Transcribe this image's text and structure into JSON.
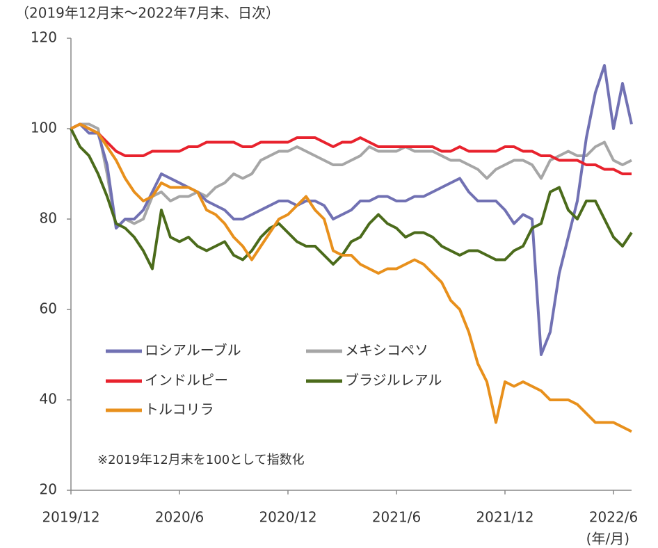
{
  "chart_data": {
    "type": "line",
    "title": "（2019年12月末～2022年7月末、日次）",
    "annotation": "※2019年12月末を100として指数化",
    "x_unit": "(年/月)",
    "categories": [
      "2019/12",
      null,
      null,
      null,
      null,
      null,
      null,
      null,
      null,
      null,
      null,
      null,
      "2020/6",
      null,
      null,
      null,
      null,
      null,
      null,
      null,
      null,
      null,
      null,
      null,
      "2020/12",
      null,
      null,
      null,
      null,
      null,
      null,
      null,
      null,
      null,
      null,
      null,
      "2021/6",
      null,
      null,
      null,
      null,
      null,
      null,
      null,
      null,
      null,
      null,
      null,
      "2021/12",
      null,
      null,
      null,
      null,
      null,
      null,
      null,
      null,
      null,
      null,
      null,
      "2022/6",
      null,
      null
    ],
    "ylim": [
      20,
      120
    ],
    "yticks": [
      20,
      40,
      60,
      80,
      100,
      120
    ],
    "series": [
      {
        "name": "ロシアルーブル",
        "color": "#7171b3",
        "values": [
          100,
          101,
          99,
          99,
          92,
          78,
          80,
          80,
          82,
          86,
          90,
          89,
          88,
          87,
          86,
          84,
          83,
          82,
          80,
          80,
          81,
          82,
          83,
          84,
          84,
          83,
          84,
          84,
          83,
          80,
          81,
          82,
          84,
          84,
          85,
          85,
          84,
          84,
          85,
          85,
          86,
          87,
          88,
          89,
          86,
          84,
          84,
          84,
          82,
          79,
          81,
          80,
          50,
          55,
          68,
          76,
          84,
          98,
          108,
          114,
          100,
          110,
          101
        ]
      },
      {
        "name": "メキシコペソ",
        "color": "#a6a6a6",
        "values": [
          100,
          101,
          101,
          100,
          90,
          78,
          80,
          79,
          80,
          85,
          86,
          84,
          85,
          85,
          86,
          85,
          87,
          88,
          90,
          89,
          90,
          93,
          94,
          95,
          95,
          96,
          95,
          94,
          93,
          92,
          92,
          93,
          94,
          96,
          95,
          95,
          95,
          96,
          95,
          95,
          95,
          94,
          93,
          93,
          92,
          91,
          89,
          91,
          92,
          93,
          93,
          92,
          89,
          93,
          94,
          95,
          94,
          94,
          96,
          97,
          93,
          92,
          93
        ]
      },
      {
        "name": "インドルピー",
        "color": "#e8222d",
        "values": [
          100,
          101,
          100,
          99,
          97,
          95,
          94,
          94,
          94,
          95,
          95,
          95,
          95,
          96,
          96,
          97,
          97,
          97,
          97,
          96,
          96,
          97,
          97,
          97,
          97,
          98,
          98,
          98,
          97,
          96,
          97,
          97,
          98,
          97,
          96,
          96,
          96,
          96,
          96,
          96,
          96,
          95,
          95,
          96,
          95,
          95,
          95,
          95,
          96,
          96,
          95,
          95,
          94,
          94,
          93,
          93,
          93,
          92,
          92,
          91,
          91,
          90,
          90
        ]
      },
      {
        "name": "ブラジルレアル",
        "color": "#4b6b1b",
        "values": [
          100,
          96,
          94,
          90,
          85,
          79,
          78,
          76,
          73,
          69,
          82,
          76,
          75,
          76,
          74,
          73,
          74,
          75,
          72,
          71,
          73,
          76,
          78,
          79,
          77,
          75,
          74,
          74,
          72,
          70,
          72,
          75,
          76,
          79,
          81,
          79,
          78,
          76,
          77,
          77,
          76,
          74,
          73,
          72,
          73,
          73,
          72,
          71,
          71,
          73,
          74,
          78,
          79,
          86,
          87,
          82,
          80,
          84,
          84,
          80,
          76,
          74,
          77
        ]
      },
      {
        "name": "トルコリラ",
        "color": "#e8901c",
        "values": [
          100,
          101,
          100,
          99,
          96,
          93,
          89,
          86,
          84,
          85,
          88,
          87,
          87,
          87,
          86,
          82,
          81,
          79,
          76,
          74,
          71,
          74,
          77,
          80,
          81,
          83,
          85,
          82,
          80,
          73,
          72,
          72,
          70,
          69,
          68,
          69,
          69,
          70,
          71,
          70,
          68,
          66,
          62,
          60,
          55,
          48,
          44,
          35,
          44,
          43,
          44,
          43,
          42,
          40,
          40,
          40,
          39,
          37,
          35,
          35,
          35,
          34,
          33
        ]
      }
    ]
  }
}
